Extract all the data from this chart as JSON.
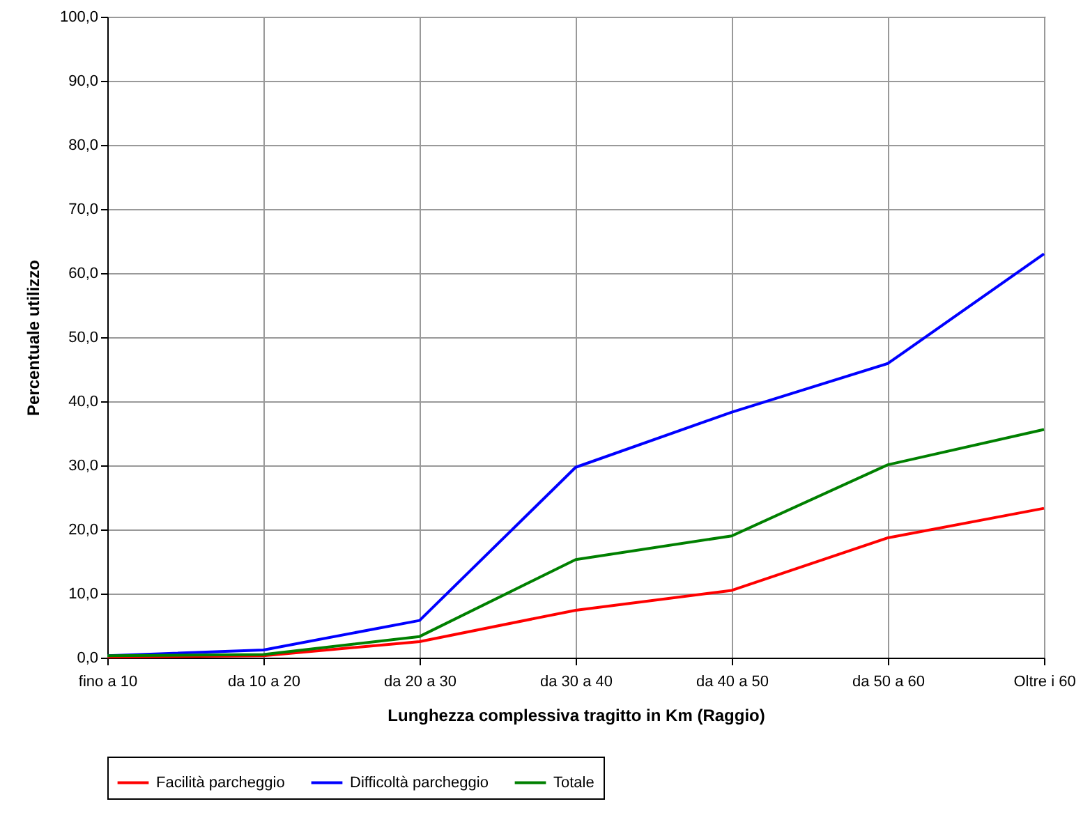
{
  "chart_data": {
    "type": "line",
    "xlabel": "Lunghezza complessiva tragitto in Km (Raggio)",
    "ylabel": "Percentuale utilizzo",
    "categories": [
      "fino a 10",
      "da 10 a 20",
      "da 20 a 30",
      "da 30 a 40",
      "da 40 a 50",
      "da 50 a 60",
      "Oltre i 60"
    ],
    "series": [
      {
        "name": "Facilità parcheggio",
        "color": "#ff0000",
        "values": [
          0.1,
          0.3,
          2.5,
          7.4,
          10.5,
          18.7,
          23.3
        ]
      },
      {
        "name": "Difficoltà parcheggio",
        "color": "#0000ff",
        "values": [
          0.3,
          1.2,
          5.8,
          29.7,
          38.3,
          45.9,
          63.0
        ]
      },
      {
        "name": "Totale",
        "color": "#008000",
        "values": [
          0.3,
          0.5,
          3.3,
          15.3,
          19.0,
          30.1,
          35.6
        ]
      }
    ],
    "ylim": [
      0,
      100
    ],
    "yticks": [
      {
        "value": 0,
        "label": "0,0"
      },
      {
        "value": 10,
        "label": "10,0"
      },
      {
        "value": 20,
        "label": "20,0"
      },
      {
        "value": 30,
        "label": "30,0"
      },
      {
        "value": 40,
        "label": "40,0"
      },
      {
        "value": 50,
        "label": "50,0"
      },
      {
        "value": 60,
        "label": "60,0"
      },
      {
        "value": 70,
        "label": "70,0"
      },
      {
        "value": 80,
        "label": "80,0"
      },
      {
        "value": 90,
        "label": "90,0"
      },
      {
        "value": 100,
        "label": "100,0"
      }
    ],
    "grid": true,
    "legend": "bottom",
    "marker": "none",
    "line_style": "solid"
  }
}
